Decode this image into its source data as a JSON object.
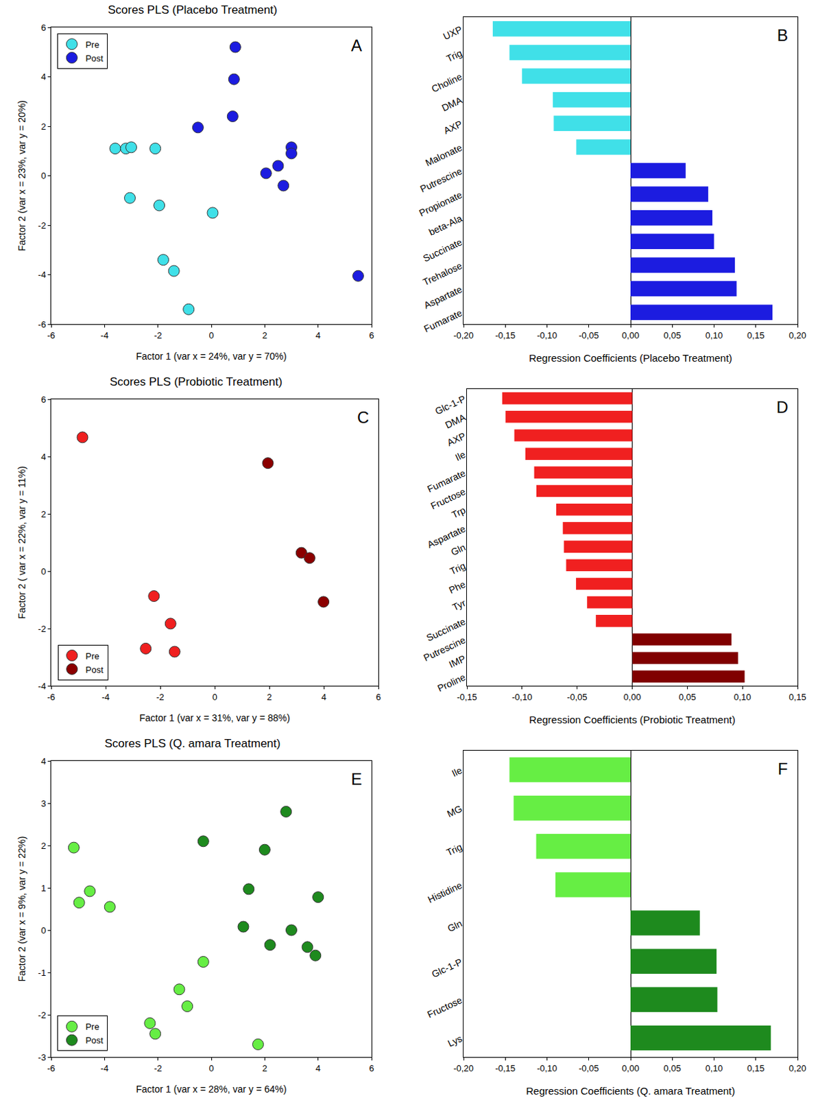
{
  "chart_data": [
    {
      "type": "scatter",
      "title": "Scores PLS (Placebo Treatment)",
      "x_label": "Factor 1 (var x = 24%, var y = 70%)",
      "y_label": "Factor 2 (var x = 23%, var y = 20%)",
      "xlim": [
        -6,
        6
      ],
      "xticks": [
        -6,
        -4,
        -2,
        0,
        2,
        4,
        6
      ],
      "ylim": [
        -6,
        6
      ],
      "yticks": [
        -6,
        -4,
        -2,
        0,
        2,
        4,
        6
      ],
      "grid": false,
      "legend": "upper left",
      "annotations": [
        "A"
      ],
      "series": [
        {
          "name": "Pre",
          "color": "#40e0e8",
          "marker": "circle",
          "x": [
            -3.6,
            -3.2,
            -3.0,
            -2.1,
            -3.05,
            -1.95,
            0.05,
            -1.8,
            -1.4,
            -0.85
          ],
          "y": [
            1.1,
            1.1,
            1.15,
            1.1,
            -0.9,
            -1.2,
            -1.5,
            -3.4,
            -3.85,
            -5.4
          ]
        },
        {
          "name": "Post",
          "color": "#1c1ce0",
          "marker": "circle",
          "x": [
            0.9,
            0.85,
            0.8,
            -0.5,
            3.0,
            3.0,
            2.5,
            2.05,
            2.7,
            5.5
          ],
          "y": [
            5.2,
            3.9,
            2.4,
            1.95,
            1.15,
            0.9,
            0.4,
            0.1,
            -0.4,
            -4.05
          ]
        }
      ]
    },
    {
      "type": "bar",
      "orientation": "horizontal",
      "x_label": "Regression Coefficients (Placebo Treatment)",
      "xlim": [
        -0.2,
        0.2
      ],
      "xticks": [
        {
          "value": -0.2,
          "label": "-0,20"
        },
        {
          "value": -0.15,
          "label": "-0,15"
        },
        {
          "value": -0.1,
          "label": "-0,10"
        },
        {
          "value": -0.05,
          "label": "-0,05"
        },
        {
          "value": 0,
          "label": "0,00"
        },
        {
          "value": 0.05,
          "label": "0,05"
        },
        {
          "value": 0.1,
          "label": "0,10"
        },
        {
          "value": 0.15,
          "label": "0,15"
        },
        {
          "value": 0.2,
          "label": "0,20"
        }
      ],
      "grid": false,
      "annotations": [
        "B"
      ],
      "categories": [
        "UXP",
        "Trig",
        "Choline",
        "DMA",
        "AXP",
        "Malonate",
        "Putrescine",
        "Propionate",
        "beta-Ala",
        "Succinate",
        "Trehalose",
        "Aspartate",
        "Fumarate"
      ],
      "values": [
        -0.165,
        -0.145,
        -0.13,
        -0.093,
        -0.092,
        -0.065,
        0.066,
        0.093,
        0.098,
        0.1,
        0.125,
        0.127,
        0.17
      ],
      "colors": [
        "#40e0e8",
        "#40e0e8",
        "#40e0e8",
        "#40e0e8",
        "#40e0e8",
        "#40e0e8",
        "#1c1ce0",
        "#1c1ce0",
        "#1c1ce0",
        "#1c1ce0",
        "#1c1ce0",
        "#1c1ce0",
        "#1c1ce0"
      ]
    },
    {
      "type": "scatter",
      "title": "Scores PLS (Probiotic Treatment)",
      "x_label": "Factor 1 (var x = 31%, var y = 88%)",
      "y_label": "Factor 2 ( var x = 22%, var y = 11%)",
      "xlim": [
        -6,
        6
      ],
      "xticks": [
        -6,
        -4,
        -2,
        0,
        2,
        4,
        6
      ],
      "ylim": [
        -4,
        6
      ],
      "yticks": [
        -4,
        -2,
        0,
        2,
        4,
        6
      ],
      "grid": false,
      "legend": "lower left",
      "annotations": [
        "C"
      ],
      "series": [
        {
          "name": "Pre",
          "color": "#f02020",
          "marker": "circle",
          "x": [
            -4.85,
            -2.23,
            -1.62,
            -2.53,
            -1.47
          ],
          "y": [
            4.67,
            -0.87,
            -1.83,
            -2.7,
            -2.81
          ]
        },
        {
          "name": "Post",
          "color": "#8b0000",
          "marker": "circle",
          "x": [
            1.95,
            3.18,
            3.48,
            3.99
          ],
          "y": [
            3.77,
            0.64,
            0.46,
            -1.07
          ]
        }
      ]
    },
    {
      "type": "bar",
      "orientation": "horizontal",
      "x_label": "Regression Coefficients (Probiotic Treatment)",
      "xlim": [
        -0.15,
        0.15
      ],
      "xticks": [
        {
          "value": -0.15,
          "label": "-0,15"
        },
        {
          "value": -0.1,
          "label": "-0,10"
        },
        {
          "value": -0.05,
          "label": "-0,05"
        },
        {
          "value": 0,
          "label": "0,00"
        },
        {
          "value": 0.05,
          "label": "0,05"
        },
        {
          "value": 0.1,
          "label": "0,10"
        },
        {
          "value": 0.15,
          "label": "0,15"
        }
      ],
      "grid": false,
      "annotations": [
        "D"
      ],
      "categories": [
        "Glc-1-P",
        "DMA",
        "AXP",
        "Ile",
        "Fumarate",
        "Fructose",
        "Trp",
        "Aspartate",
        "Gln",
        "Trig",
        "Phe",
        "Tyr",
        "Succinate",
        "Putrescine",
        "IMP",
        "Proline"
      ],
      "values": [
        -0.118,
        -0.115,
        -0.107,
        -0.097,
        -0.089,
        -0.087,
        -0.069,
        -0.063,
        -0.062,
        -0.06,
        -0.051,
        -0.041,
        -0.033,
        0.09,
        0.096,
        0.102
      ],
      "colors": [
        "#f02020",
        "#f02020",
        "#f02020",
        "#f02020",
        "#f02020",
        "#f02020",
        "#f02020",
        "#f02020",
        "#f02020",
        "#f02020",
        "#f02020",
        "#f02020",
        "#f02020",
        "#800000",
        "#800000",
        "#800000"
      ]
    },
    {
      "type": "scatter",
      "title": "Scores PLS (Q. amara Treatment)",
      "x_label": "Factor 1 (var x = 28%, var y = 64%)",
      "y_label": "Factor 2 (var x = 9%, var y = 22%)",
      "xlim": [
        -6,
        6
      ],
      "xticks": [
        -6,
        -4,
        -2,
        0,
        2,
        4,
        6
      ],
      "ylim": [
        -3,
        4
      ],
      "yticks": [
        -3,
        -2,
        -1,
        0,
        1,
        2,
        3,
        4
      ],
      "grid": false,
      "legend": "lower left",
      "annotations": [
        "E"
      ],
      "series": [
        {
          "name": "Pre",
          "color": "#66ee44",
          "marker": "circle",
          "x": [
            -5.15,
            -4.95,
            -4.55,
            -3.8,
            -0.3,
            -1.2,
            -0.9,
            -2.3,
            -2.1,
            1.75
          ],
          "y": [
            1.95,
            0.65,
            0.92,
            0.55,
            -0.75,
            -1.4,
            -1.8,
            -2.2,
            -2.45,
            -2.7
          ]
        },
        {
          "name": "Post",
          "color": "#1e8a1e",
          "marker": "circle",
          "x": [
            -0.3,
            2.0,
            2.8,
            1.4,
            4.0,
            1.2,
            3.0,
            2.2,
            3.6,
            3.9
          ],
          "y": [
            2.1,
            1.9,
            2.8,
            0.97,
            0.78,
            0.08,
            0.0,
            -0.35,
            -0.4,
            -0.6
          ]
        }
      ]
    },
    {
      "type": "bar",
      "orientation": "horizontal",
      "x_label": "Regression Coefficients (Q. amara Treatment)",
      "xlim": [
        -0.2,
        0.2
      ],
      "xticks": [
        {
          "value": -0.2,
          "label": "-0,20"
        },
        {
          "value": -0.15,
          "label": "-0,15"
        },
        {
          "value": -0.1,
          "label": "-0,10"
        },
        {
          "value": -0.05,
          "label": "-0,05"
        },
        {
          "value": 0,
          "label": "0,00"
        },
        {
          "value": 0.05,
          "label": "0,05"
        },
        {
          "value": 0.1,
          "label": "0,10"
        },
        {
          "value": 0.15,
          "label": "0,15"
        },
        {
          "value": 0.2,
          "label": "0,20"
        }
      ],
      "grid": false,
      "annotations": [
        "F"
      ],
      "categories": [
        "Ile",
        "MG",
        "Trig",
        "Histidine",
        "Gln",
        "Glc-1-P",
        "Fructose",
        "Lys"
      ],
      "values": [
        -0.145,
        -0.14,
        -0.113,
        -0.09,
        0.083,
        0.103,
        0.104,
        0.168
      ],
      "colors": [
        "#66ee44",
        "#66ee44",
        "#66ee44",
        "#66ee44",
        "#1e8a1e",
        "#1e8a1e",
        "#1e8a1e",
        "#1e8a1e"
      ]
    }
  ]
}
